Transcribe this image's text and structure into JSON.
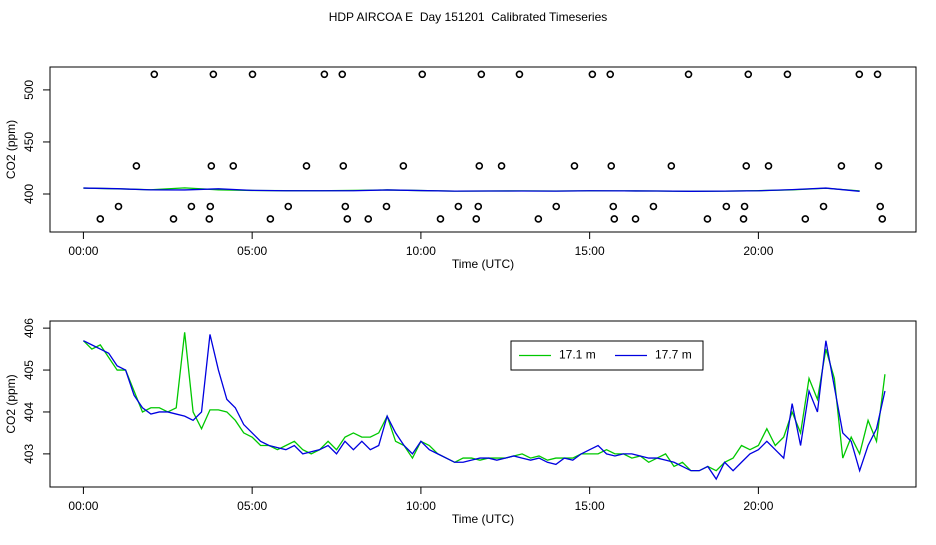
{
  "chart_data": [
    {
      "type": "scatter",
      "title": "HDP AIRCOA E  Day 151201  Calibrated Timeseries",
      "xlabel": "Time (UTC)",
      "ylabel": "CO2 (ppm)",
      "xlim": [
        -0.99,
        24.67
      ],
      "ylim": [
        363.5,
        522
      ],
      "xticks": [
        {
          "value": 0,
          "label": "00:00"
        },
        {
          "value": 5,
          "label": "05:00"
        },
        {
          "value": 10,
          "label": "10:00"
        },
        {
          "value": 15,
          "label": "15:00"
        },
        {
          "value": 20,
          "label": "20:00"
        }
      ],
      "yticks": [
        400,
        450,
        500
      ],
      "series": [
        {
          "type": "scatter",
          "color": "#000000",
          "x": [
            2.1,
            3.85,
            5.01,
            7.14,
            7.67,
            10.04,
            11.79,
            12.92,
            15.08,
            15.61,
            17.93,
            19.7,
            20.86,
            22.99,
            23.53,
            1.57,
            3.79,
            4.44,
            6.61,
            7.7,
            9.48,
            11.73,
            12.39,
            14.55,
            15.64,
            17.42,
            19.64,
            20.3,
            22.46,
            23.56,
            1.04,
            3.2,
            3.76,
            6.07,
            7.76,
            8.98,
            11.11,
            11.7,
            14.01,
            15.7,
            16.89,
            19.05,
            19.59,
            21.93,
            23.61,
            0.5,
            2.67,
            3.73,
            5.54,
            7.82,
            8.44,
            10.58,
            11.64,
            13.48,
            15.73,
            16.36,
            18.49,
            19.56,
            21.39,
            23.67
          ],
          "values": [
            515,
            515,
            515,
            515,
            515,
            515,
            515,
            515,
            515,
            515,
            515,
            515,
            515,
            515,
            515,
            427,
            427,
            427,
            427,
            427,
            427,
            427,
            427,
            427,
            427,
            427,
            427,
            427,
            427,
            427,
            388,
            388,
            388,
            388,
            388,
            388,
            388,
            388,
            388,
            388,
            388,
            388,
            388,
            388,
            388,
            376,
            376,
            376,
            376,
            376,
            376,
            376,
            376,
            376,
            376,
            376,
            376,
            376,
            376,
            376
          ]
        },
        {
          "type": "line",
          "color": "#00c800",
          "x": [
            0,
            1,
            2,
            3,
            4,
            5,
            6,
            7,
            8,
            9,
            10,
            11,
            12,
            13,
            14,
            15,
            16,
            17,
            18,
            19,
            20,
            21,
            22,
            23
          ],
          "values": [
            405.7,
            405.0,
            404.1,
            405.9,
            404.05,
            403.4,
            403.2,
            403.1,
            403.5,
            403.9,
            403.3,
            402.8,
            402.9,
            403.0,
            402.9,
            403.0,
            403.0,
            402.9,
            402.6,
            402.8,
            403.2,
            404.0,
            405.5,
            403.0
          ]
        },
        {
          "type": "line",
          "color": "#0000e0",
          "x": [
            0,
            1,
            2,
            3,
            4,
            5,
            6,
            7,
            8,
            9,
            10,
            11,
            12,
            13,
            14,
            15,
            16,
            17,
            18,
            19,
            20,
            21,
            22,
            23
          ],
          "values": [
            405.7,
            405.1,
            403.95,
            403.9,
            405.0,
            403.5,
            403.1,
            403.1,
            403.1,
            403.9,
            403.3,
            402.8,
            402.9,
            402.9,
            402.75,
            403.1,
            403.0,
            402.9,
            402.6,
            402.8,
            403.1,
            404.2,
            405.7,
            402.6
          ]
        }
      ]
    },
    {
      "type": "line",
      "xlabel": "Time (UTC)",
      "ylabel": "CO2 (ppm)",
      "xlim": [
        -0.99,
        24.67
      ],
      "ylim": [
        402.21,
        406.17
      ],
      "xticks": [
        {
          "value": 0,
          "label": "00:00"
        },
        {
          "value": 5,
          "label": "05:00"
        },
        {
          "value": 10,
          "label": "10:00"
        },
        {
          "value": 15,
          "label": "15:00"
        },
        {
          "value": 20,
          "label": "20:00"
        }
      ],
      "yticks": [
        403,
        404,
        405,
        406
      ],
      "legend": "top",
      "x": [
        0,
        0.25,
        0.5,
        0.75,
        1,
        1.25,
        1.5,
        1.75,
        2,
        2.25,
        2.5,
        2.75,
        3,
        3.25,
        3.5,
        3.75,
        4,
        4.25,
        4.5,
        4.75,
        5,
        5.25,
        5.5,
        5.75,
        6,
        6.25,
        6.5,
        6.75,
        7,
        7.25,
        7.5,
        7.75,
        8,
        8.25,
        8.5,
        8.75,
        9,
        9.25,
        9.5,
        9.75,
        10,
        10.25,
        10.5,
        10.75,
        11,
        11.25,
        11.5,
        11.75,
        12,
        12.25,
        12.5,
        12.75,
        13,
        13.25,
        13.5,
        13.75,
        14,
        14.25,
        14.5,
        14.75,
        15,
        15.25,
        15.5,
        15.75,
        16,
        16.25,
        16.5,
        16.75,
        17,
        17.25,
        17.5,
        17.75,
        18,
        18.25,
        18.5,
        18.75,
        19,
        19.25,
        19.5,
        19.75,
        20,
        20.25,
        20.5,
        20.75,
        21,
        21.25,
        21.5,
        21.75,
        22,
        22.25,
        22.5,
        22.75,
        23,
        23.25,
        23.5,
        23.75
      ],
      "series": [
        {
          "name": "17.1 m",
          "color": "#00c800",
          "values": [
            405.7,
            405.5,
            405.6,
            405.3,
            405.0,
            405.0,
            404.5,
            404.0,
            404.1,
            404.1,
            404.0,
            404.1,
            405.9,
            404.0,
            403.6,
            404.05,
            404.05,
            404.0,
            403.8,
            403.5,
            403.4,
            403.2,
            403.2,
            403.1,
            403.2,
            403.3,
            403.1,
            403.0,
            403.1,
            403.3,
            403.1,
            403.4,
            403.5,
            403.4,
            403.4,
            403.5,
            403.9,
            403.3,
            403.2,
            402.9,
            403.3,
            403.2,
            403.0,
            402.9,
            402.8,
            402.9,
            402.9,
            402.85,
            402.9,
            402.9,
            402.9,
            402.95,
            403.0,
            402.9,
            402.95,
            402.85,
            402.9,
            402.9,
            402.9,
            403.0,
            403.0,
            403.0,
            403.1,
            403.0,
            403.0,
            402.9,
            402.95,
            402.8,
            402.9,
            403.0,
            402.7,
            402.8,
            402.6,
            402.6,
            402.7,
            402.6,
            402.8,
            402.9,
            403.2,
            403.1,
            403.2,
            403.6,
            403.2,
            403.4,
            404.0,
            403.5,
            404.8,
            404.3,
            405.5,
            404.8,
            402.9,
            403.4,
            403.0,
            403.8,
            403.3,
            404.9
          ]
        },
        {
          "name": "17.7 m",
          "color": "#0000e0",
          "values": [
            405.7,
            405.6,
            405.5,
            405.4,
            405.1,
            405.0,
            404.4,
            404.1,
            403.95,
            404.0,
            404.0,
            403.95,
            403.9,
            403.8,
            404.0,
            405.85,
            405.0,
            404.3,
            404.1,
            403.7,
            403.5,
            403.3,
            403.2,
            403.15,
            403.1,
            403.2,
            403.0,
            403.05,
            403.1,
            403.2,
            403.0,
            403.3,
            403.1,
            403.3,
            403.1,
            403.2,
            403.9,
            403.5,
            403.2,
            403.0,
            403.3,
            403.1,
            403.0,
            402.9,
            402.8,
            402.8,
            402.85,
            402.9,
            402.9,
            402.85,
            402.9,
            402.95,
            402.9,
            402.85,
            402.9,
            402.8,
            402.75,
            402.9,
            402.85,
            403.0,
            403.1,
            403.2,
            403.0,
            402.95,
            403.0,
            403.0,
            402.95,
            402.9,
            402.9,
            402.85,
            402.8,
            402.7,
            402.6,
            402.6,
            402.7,
            402.4,
            402.8,
            402.6,
            402.8,
            403.0,
            403.1,
            403.3,
            403.1,
            402.9,
            404.2,
            403.2,
            404.5,
            404.0,
            405.7,
            404.6,
            403.5,
            403.3,
            402.6,
            403.2,
            403.6,
            404.5
          ]
        }
      ]
    }
  ]
}
